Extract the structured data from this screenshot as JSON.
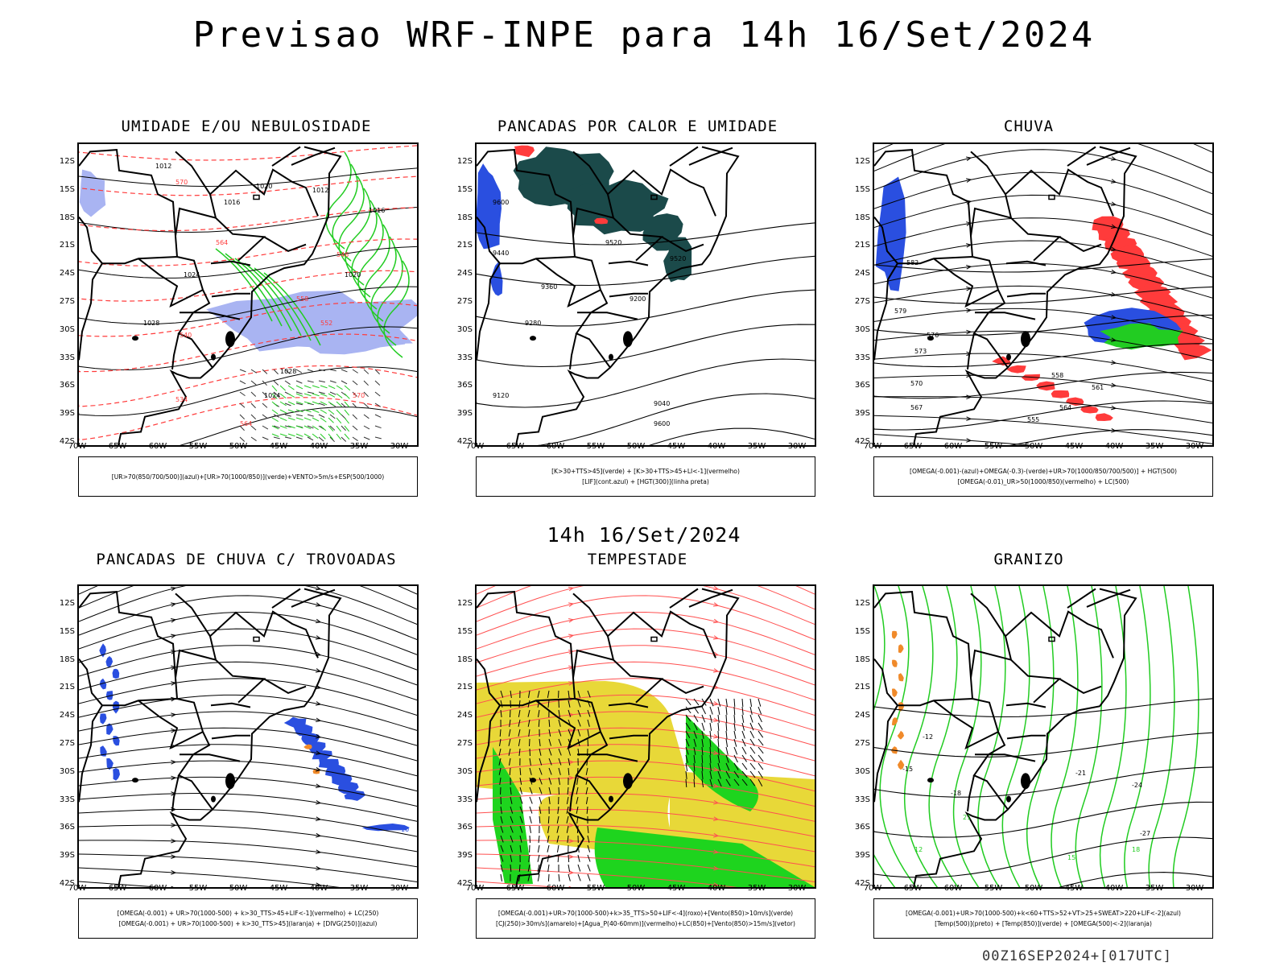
{
  "header": {
    "title": "Previsao WRF-INPE  para 14h 16/Set/2024",
    "mid_title": "14h 16/Set/2024",
    "footer": "00Z16SEP2024+[017UTC]"
  },
  "axes": {
    "lat_labels": [
      "12S",
      "15S",
      "18S",
      "21S",
      "24S",
      "27S",
      "30S",
      "33S",
      "36S",
      "39S",
      "42S"
    ],
    "lon_labels": [
      "70W",
      "65W",
      "60W",
      "55W",
      "50W",
      "45W",
      "40W",
      "35W",
      "30W"
    ]
  },
  "panels": [
    {
      "title": "UMIDADE E/OU NEBULOSIDADE",
      "legend": [
        "[UR>70(850/700/500)](azul)+[UR>70(1000/850)](verde)+VENTO>5m/s+ESP(500/1000)"
      ],
      "contour_labels": [
        "1012",
        "1016",
        "1020",
        "1024",
        "1028",
        "570",
        "564",
        "558",
        "552",
        "546",
        "540",
        "534"
      ]
    },
    {
      "title": "PANCADAS POR CALOR E UMIDADE",
      "legend": [
        "[K>30+TTS>45](verde) + [K>30+TTS>45+LI<-1](vermelho)",
        "[LIF](cont.azul) + [HGT(300)](linha preta)"
      ],
      "contour_labels": [
        "9600",
        "9520",
        "9440",
        "9360",
        "9280",
        "9200",
        "9120",
        "9040"
      ]
    },
    {
      "title": "CHUVA",
      "legend": [
        "[OMEGA(-0.001)-(azul)+OMEGA(-0.3)-(verde)+UR>70(1000/850/700/500)] + HGT(500)",
        "[OMEGA(-0.01)_UR>50(1000/850)(vermelho) + LC(500)"
      ],
      "contour_labels": [
        "582",
        "579",
        "576",
        "573",
        "570",
        "567",
        "564",
        "561",
        "558",
        "555"
      ]
    },
    {
      "title": "PANCADAS DE CHUVA C/ TROVOADAS",
      "legend": [
        "[OMEGA(-0.001) + UR>70(1000-500) + k>30_TTS>45+LIF<-1](vermelho) + LC(250)",
        "[OMEGA(-0.001) + UR>70(1000-500) + k>30_TTS>45](laranja) + [DIVG(250)](azul)"
      ],
      "contour_labels": [
        "10"
      ]
    },
    {
      "title": "TEMPESTADE",
      "legend": [
        "[OMEGA(-0.001)+UR>70(1000-500)+k>35_TTS>50+LIF<-4](roxo)+[Vento(850)>10m/s](verde)",
        "[CJ(250)>30m/s](amarelo)+[Agua_P(40-60mm)](vermelho)+LC(850)+[Vento(850)>15m/s](vetor)"
      ],
      "contour_labels": []
    },
    {
      "title": "GRANIZO",
      "legend": [
        "[OMEGA(-0.001)+UR>70(1000-500)+k<60+TTS>52+VT>25+SWEAT>220+LIF<-2](azul)",
        "[Temp(500)](preto) + [Temp(850)](verde) + [OMEGA(500)<-2](laranja)"
      ],
      "contour_labels": [
        "-12",
        "-15",
        "-18",
        "-21",
        "-24",
        "-27",
        "12",
        "15",
        "18",
        "21"
      ]
    }
  ],
  "colors": {
    "coast": "#000000",
    "blue_area": "#2a4fe0",
    "light_blue": "#a9b4f2",
    "green": "#22cc22",
    "bright_green": "#1ed41e",
    "red": "#ff3b3b",
    "dark_teal": "#1b4a4a",
    "yellow": "#e8d838",
    "orange": "#f08a2a",
    "stream_red": "#ff5050"
  }
}
